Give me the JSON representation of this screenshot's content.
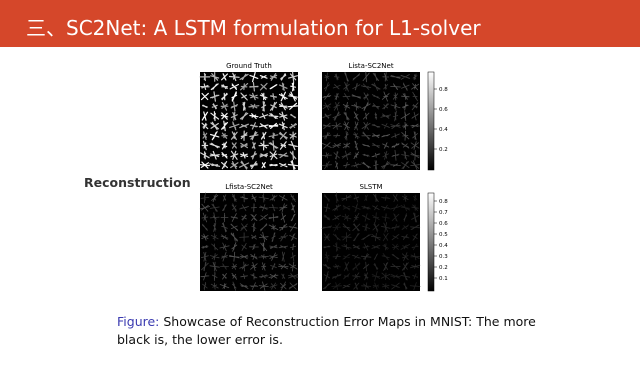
{
  "header": {
    "title": "三、SC2Net: A LSTM formulation for L1-solver"
  },
  "row_label": "Reconstruction",
  "panels": [
    {
      "title": "Ground Truth"
    },
    {
      "title": "Lista-SC2Net"
    },
    {
      "title": "Lfista-SC2Net"
    },
    {
      "title": "SLSTM"
    }
  ],
  "colorbars": [
    {
      "ticks": [
        "0.8",
        "0.6",
        "0.4",
        "0.2"
      ]
    },
    {
      "ticks": [
        "0.8",
        "0.7",
        "0.6",
        "0.5",
        "0.4",
        "0.3",
        "0.2",
        "0.1"
      ]
    }
  ],
  "caption": {
    "label": "Figure:",
    "text": "Showcase of Reconstruction Error Maps in MNIST: The more black is, the lower error is."
  }
}
